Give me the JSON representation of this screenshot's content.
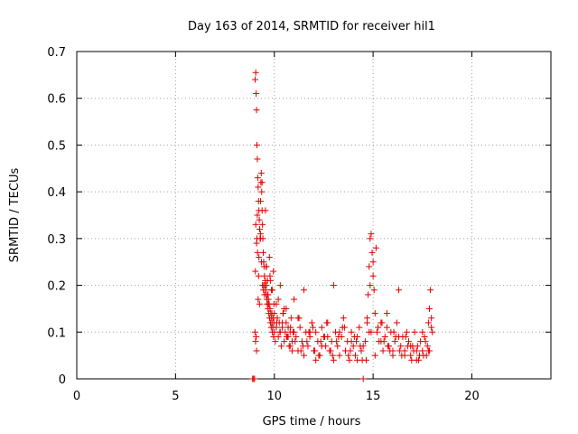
{
  "chart_data": {
    "type": "scatter",
    "title": "Day 163 of 2014, SRMTID for receiver hil1",
    "xlabel": "GPS time / hours",
    "ylabel": "SRMTID / TECUs",
    "xlim": [
      0,
      24
    ],
    "ylim": [
      0,
      0.7
    ],
    "xticks": [
      0,
      5,
      10,
      15,
      20
    ],
    "yticks": [
      0,
      0.1,
      0.2,
      0.3,
      0.4,
      0.5,
      0.6,
      0.7
    ],
    "ytick_labels": [
      "0",
      "0.1",
      "0.2",
      "0.3",
      "0.4",
      "0.5",
      "0.6",
      "0.7"
    ],
    "grid": true,
    "marker": "plus",
    "color": "#e00000",
    "series": [
      {
        "name": "hil1",
        "x": [
          8.9,
          8.95,
          9.0,
          9.03,
          9.06,
          9.08,
          9.1,
          9.12,
          9.14,
          9.16,
          9.18,
          9.2,
          9.22,
          9.24,
          9.26,
          9.28,
          9.3,
          9.32,
          9.34,
          9.36,
          9.38,
          9.4,
          9.42,
          9.44,
          9.46,
          9.48,
          9.5,
          9.52,
          9.54,
          9.56,
          9.58,
          9.6,
          9.62,
          9.64,
          9.66,
          9.68,
          9.7,
          9.72,
          9.74,
          9.76,
          9.78,
          9.8,
          9.82,
          9.84,
          9.86,
          9.88,
          9.9,
          9.92,
          9.94,
          9.96,
          9.98,
          10.0,
          10.05,
          10.1,
          10.15,
          10.2,
          10.25,
          10.3,
          10.35,
          10.4,
          10.45,
          10.5,
          10.55,
          10.6,
          10.65,
          10.7,
          10.75,
          10.8,
          10.85,
          10.9,
          10.95,
          11.0,
          11.1,
          11.2,
          11.3,
          11.4,
          11.5,
          11.6,
          11.7,
          11.8,
          11.9,
          12.0,
          12.1,
          12.2,
          12.3,
          12.4,
          12.5,
          12.6,
          12.7,
          12.8,
          12.9,
          13.0,
          13.1,
          13.2,
          13.3,
          13.4,
          13.5,
          13.6,
          13.7,
          13.8,
          13.9,
          14.0,
          14.1,
          14.2,
          14.3,
          14.4,
          14.5,
          14.6,
          14.7,
          14.75,
          14.8,
          14.85,
          14.9,
          14.95,
          15.0,
          15.05,
          15.1,
          15.2,
          15.3,
          15.4,
          15.5,
          15.6,
          15.7,
          15.8,
          15.9,
          16.0,
          16.1,
          16.2,
          16.3,
          16.4,
          16.5,
          16.6,
          16.7,
          16.8,
          16.9,
          17.0,
          17.1,
          17.2,
          17.3,
          17.4,
          17.5,
          17.6,
          17.7,
          17.75,
          17.8,
          17.85,
          17.9,
          17.95,
          18.0,
          9.05,
          9.1,
          9.15,
          9.2,
          9.25,
          9.3,
          9.35,
          9.45,
          9.55,
          9.65,
          9.75,
          9.85,
          9.95,
          10.1,
          10.3,
          10.5,
          10.7,
          10.9,
          11.2,
          11.5,
          11.8,
          12.1,
          12.4,
          12.7,
          13.0,
          13.3,
          13.6,
          13.9,
          14.2,
          14.5,
          14.8,
          15.1,
          15.4,
          15.7,
          16.0,
          16.3,
          16.6,
          16.9,
          17.2,
          17.5,
          17.8,
          9.08,
          9.12,
          9.18,
          9.4,
          9.5,
          9.6,
          9.7,
          9.8,
          9.9,
          10.0,
          10.2,
          10.4,
          10.6,
          10.8,
          11.0,
          11.35,
          11.65,
          11.95,
          12.25,
          12.55,
          12.85,
          13.15,
          13.45,
          13.75,
          14.05,
          14.35,
          14.65,
          14.9,
          15.15,
          15.45,
          15.75,
          16.05,
          16.35,
          16.65,
          16.95,
          17.25,
          17.55,
          17.85,
          9.02,
          9.04,
          9.06,
          9.1,
          9.14,
          9.22,
          9.3,
          9.38,
          9.46,
          9.58,
          9.68,
          9.78,
          9.88,
          9.98,
          10.12,
          10.28,
          10.44,
          10.62,
          10.82,
          11.05,
          11.25,
          11.45,
          11.75,
          12.05,
          12.35,
          12.65,
          12.95,
          13.25,
          13.55,
          13.85,
          14.15,
          14.45,
          14.7,
          14.85,
          15.0,
          15.25,
          15.55,
          15.85,
          16.15,
          16.45,
          16.75,
          17.05,
          17.35,
          17.65,
          17.95
        ],
        "y": [
          0.0,
          0.0,
          0.0,
          0.64,
          0.655,
          0.61,
          0.575,
          0.5,
          0.47,
          0.43,
          0.41,
          0.38,
          0.36,
          0.34,
          0.32,
          0.3,
          0.38,
          0.42,
          0.44,
          0.4,
          0.36,
          0.33,
          0.3,
          0.27,
          0.25,
          0.24,
          0.22,
          0.2,
          0.21,
          0.19,
          0.18,
          0.2,
          0.17,
          0.16,
          0.18,
          0.15,
          0.17,
          0.14,
          0.16,
          0.13,
          0.15,
          0.12,
          0.14,
          0.11,
          0.13,
          0.12,
          0.1,
          0.11,
          0.13,
          0.09,
          0.12,
          0.1,
          0.08,
          0.11,
          0.13,
          0.09,
          0.12,
          0.1,
          0.07,
          0.11,
          0.14,
          0.08,
          0.1,
          0.12,
          0.09,
          0.11,
          0.07,
          0.1,
          0.13,
          0.08,
          0.1,
          0.17,
          0.09,
          0.06,
          0.11,
          0.08,
          0.19,
          0.1,
          0.07,
          0.09,
          0.12,
          0.06,
          0.1,
          0.08,
          0.05,
          0.11,
          0.09,
          0.07,
          0.12,
          0.06,
          0.08,
          0.2,
          0.1,
          0.07,
          0.05,
          0.09,
          0.13,
          0.06,
          0.08,
          0.04,
          0.1,
          0.07,
          0.05,
          0.09,
          0.11,
          0.06,
          0.0,
          0.08,
          0.13,
          0.18,
          0.24,
          0.3,
          0.31,
          0.27,
          0.22,
          0.19,
          0.14,
          0.1,
          0.08,
          0.12,
          0.06,
          0.09,
          0.11,
          0.07,
          0.1,
          0.05,
          0.08,
          0.12,
          0.19,
          0.07,
          0.09,
          0.06,
          0.1,
          0.08,
          0.05,
          0.07,
          0.1,
          0.06,
          0.04,
          0.08,
          0.06,
          0.09,
          0.05,
          0.07,
          0.12,
          0.15,
          0.19,
          0.13,
          0.1,
          0.08,
          0.06,
          0.27,
          0.22,
          0.16,
          0.3,
          0.25,
          0.19,
          0.36,
          0.21,
          0.26,
          0.19,
          0.23,
          0.16,
          0.2,
          0.15,
          0.09,
          0.06,
          0.13,
          0.05,
          0.1,
          0.04,
          0.07,
          0.09,
          0.04,
          0.1,
          0.06,
          0.08,
          0.04,
          0.07,
          0.1,
          0.05,
          0.08,
          0.14,
          0.06,
          0.09,
          0.05,
          0.07,
          0.04,
          0.1,
          0.06,
          0.09,
          0.3,
          0.17,
          0.2,
          0.18,
          0.24,
          0.16,
          0.21,
          0.19,
          0.14,
          0.17,
          0.12,
          0.15,
          0.07,
          0.1,
          0.06,
          0.08,
          0.11,
          0.05,
          0.09,
          0.06,
          0.08,
          0.11,
          0.05,
          0.09,
          0.07,
          0.04,
          0.1,
          0.28,
          0.12,
          0.07,
          0.1,
          0.06,
          0.09,
          0.04,
          0.07,
          0.05,
          0.06,
          0.1,
          0.23,
          0.33,
          0.29,
          0.35,
          0.26,
          0.31,
          0.42,
          0.2,
          0.24,
          0.18,
          0.22,
          0.14,
          0.16,
          0.12,
          0.1,
          0.14,
          0.09,
          0.11,
          0.08,
          0.13,
          0.07,
          0.1,
          0.06,
          0.08,
          0.12,
          0.05,
          0.09,
          0.11,
          0.06,
          0.08,
          0.04,
          0.12,
          0.2,
          0.25,
          0.11,
          0.08,
          0.06,
          0.09,
          0.05,
          0.07,
          0.06,
          0.05,
          0.08,
          0.11
        ]
      }
    ]
  }
}
